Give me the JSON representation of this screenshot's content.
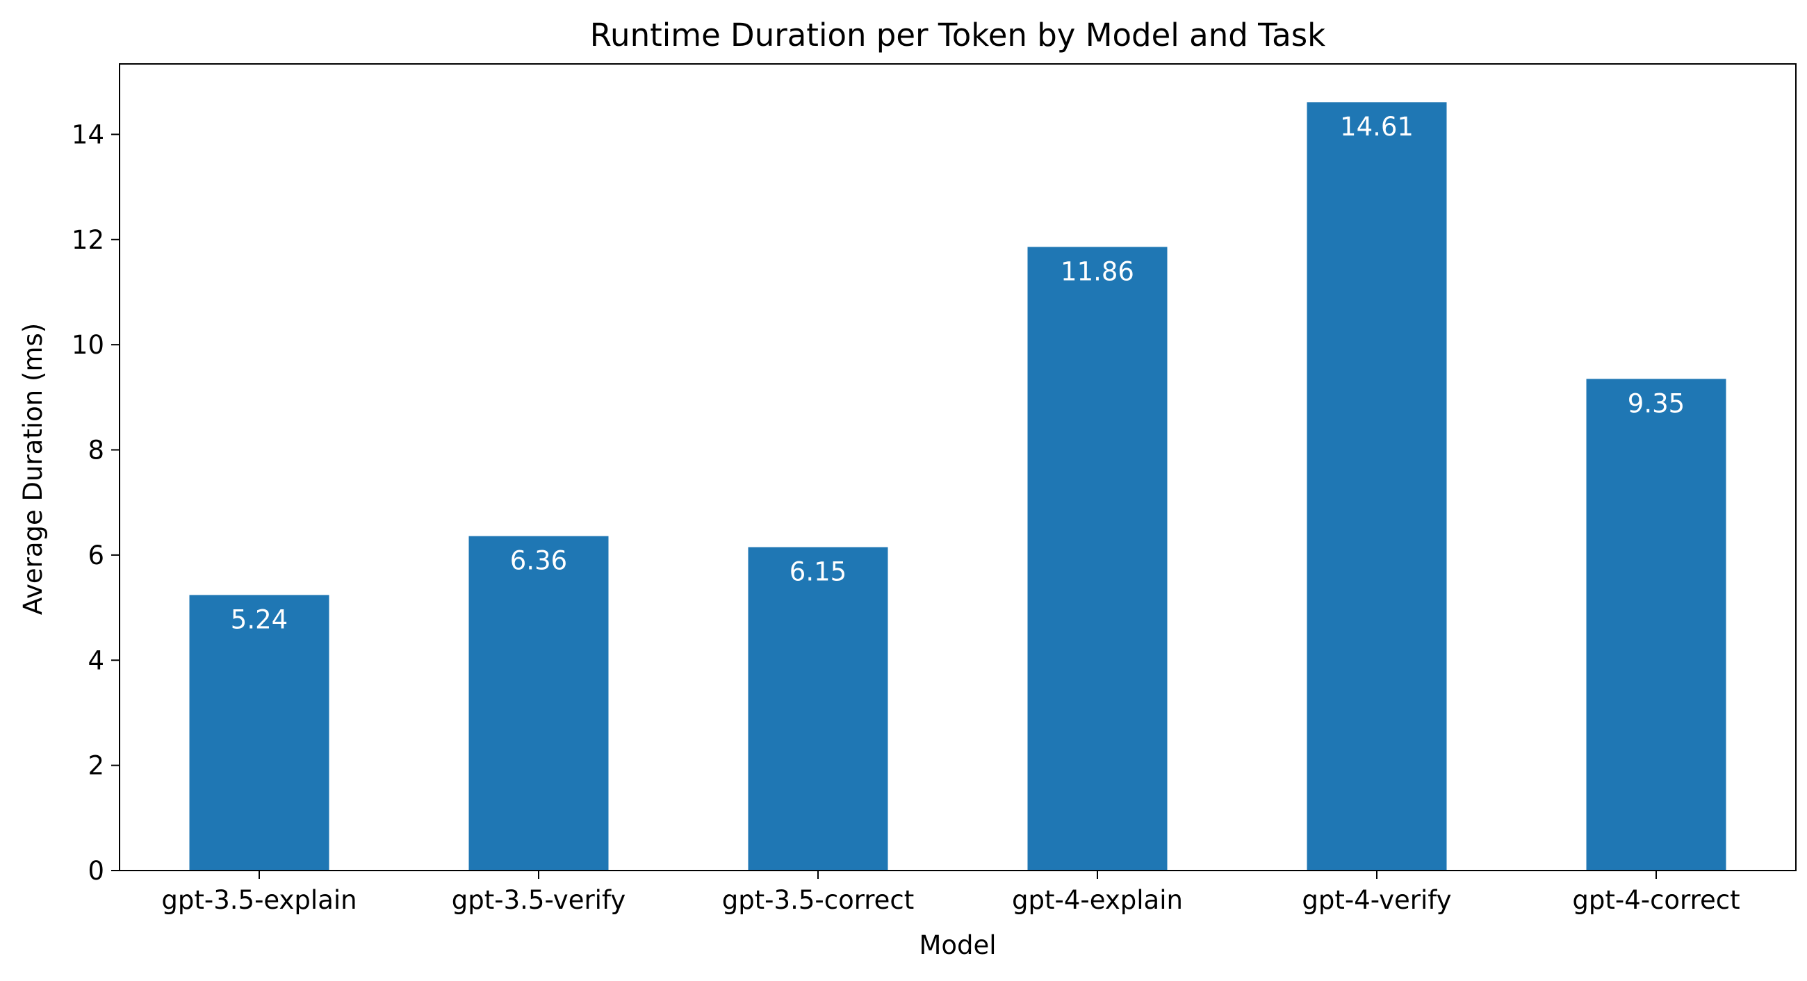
{
  "chart_data": {
    "type": "bar",
    "title": "Runtime Duration per Token by Model and Task",
    "xlabel": "Model",
    "ylabel": "Average Duration (ms)",
    "categories": [
      "gpt-3.5-explain",
      "gpt-3.5-verify",
      "gpt-3.5-correct",
      "gpt-4-explain",
      "gpt-4-verify",
      "gpt-4-correct"
    ],
    "values": [
      5.24,
      6.36,
      6.15,
      11.86,
      14.61,
      9.35
    ],
    "data_labels": [
      "5.24",
      "6.36",
      "6.15",
      "11.86",
      "14.61",
      "9.35"
    ],
    "ylim": [
      0,
      15.34
    ],
    "yticks": [
      0,
      2,
      4,
      6,
      8,
      10,
      12,
      14
    ],
    "grid": false,
    "legend": "none",
    "colors": {
      "bar": "#1f77b4",
      "bar_label": "#ffffff",
      "axis": "#000000"
    }
  }
}
